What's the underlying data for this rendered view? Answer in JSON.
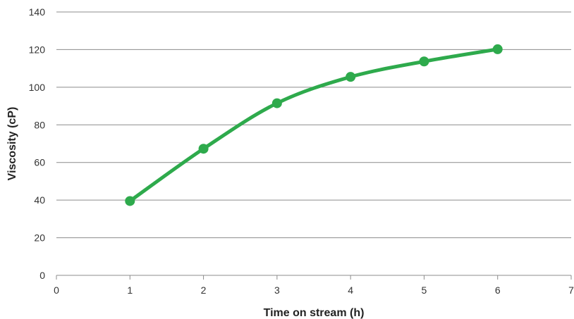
{
  "chart_data": {
    "type": "line",
    "title": "",
    "xlabel": "Time on stream (h)",
    "ylabel": "Viscosity (cP)",
    "xlim": [
      0,
      7
    ],
    "ylim": [
      0,
      140
    ],
    "x_ticks": [
      "0",
      "1",
      "2",
      "3",
      "4",
      "5",
      "6",
      "7"
    ],
    "y_ticks": [
      "0",
      "20",
      "40",
      "60",
      "80",
      "100",
      "120",
      "140"
    ],
    "grid": "horizontal",
    "legend": "none",
    "series": [
      {
        "color": "#2eaa4c",
        "smooth": true,
        "x": [
          1,
          2,
          3,
          4,
          5,
          6
        ],
        "y": [
          39.5,
          67.3,
          91.5,
          105.5,
          113.7,
          120.2
        ]
      }
    ]
  }
}
